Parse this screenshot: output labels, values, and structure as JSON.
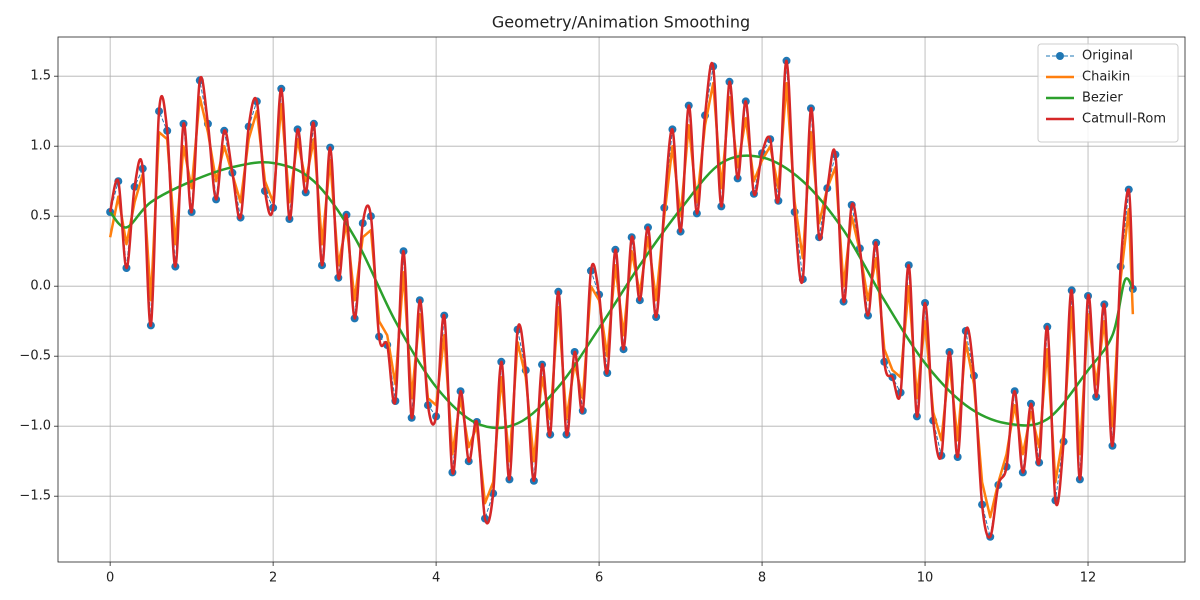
{
  "chart_data": {
    "type": "line",
    "title": "Geometry/Animation Smoothing",
    "x": [
      0,
      0.1,
      0.2,
      0.3,
      0.4,
      0.5,
      0.6,
      0.7,
      0.8,
      0.9,
      1.0,
      1.1,
      1.2,
      1.3,
      1.4,
      1.5,
      1.6,
      1.7,
      1.8,
      1.9,
      2.0,
      2.1,
      2.2,
      2.3,
      2.4,
      2.5,
      2.6,
      2.7,
      2.8,
      2.9,
      3.0,
      3.1,
      3.2,
      3.3,
      3.4,
      3.5,
      3.6,
      3.7,
      3.8,
      3.9,
      4.0,
      4.1,
      4.2,
      4.3,
      4.4,
      4.5,
      4.6,
      4.7,
      4.8,
      4.9,
      5.0,
      5.1,
      5.2,
      5.3,
      5.4,
      5.5,
      5.6,
      5.7,
      5.8,
      5.9,
      6.0,
      6.1,
      6.2,
      6.3,
      6.4,
      6.5,
      6.6,
      6.7,
      6.8,
      6.9,
      7.0,
      7.1,
      7.2,
      7.3,
      7.4,
      7.5,
      7.6,
      7.7,
      7.8,
      7.9,
      8.0,
      8.1,
      8.2,
      8.3,
      8.4,
      8.5,
      8.6,
      8.7,
      8.8,
      8.9,
      9.0,
      9.1,
      9.2,
      9.3,
      9.4,
      9.5,
      9.6,
      9.7,
      9.8,
      9.9,
      10.0,
      10.1,
      10.2,
      10.3,
      10.4,
      10.5,
      10.6,
      10.7,
      10.8,
      10.9,
      11.0,
      11.1,
      11.2,
      11.3,
      11.4,
      11.5,
      11.6,
      11.7,
      11.8,
      11.9,
      12.0,
      12.1,
      12.2,
      12.3,
      12.4,
      12.5,
      12.55
    ],
    "series": [
      {
        "name": "Original",
        "color": "#1f77b4",
        "style": "dashed-markers",
        "values": [
          0.53,
          0.75,
          0.13,
          0.71,
          0.84,
          -0.28,
          1.25,
          1.11,
          0.14,
          1.16,
          0.53,
          1.47,
          1.16,
          0.62,
          1.11,
          0.81,
          0.49,
          1.14,
          1.32,
          0.68,
          0.56,
          1.41,
          0.48,
          1.12,
          0.67,
          1.16,
          0.15,
          0.99,
          0.06,
          0.51,
          -0.23,
          0.45,
          0.5,
          -0.36,
          -0.42,
          -0.82,
          0.25,
          -0.94,
          -0.1,
          -0.85,
          -0.93,
          -0.21,
          -1.33,
          -0.75,
          -1.25,
          -0.97,
          -1.66,
          -1.48,
          -0.54,
          -1.38,
          -0.31,
          -0.6,
          -1.39,
          -0.56,
          -1.06,
          -0.04,
          -1.06,
          -0.47,
          -0.89,
          0.11,
          -0.06,
          -0.62,
          0.26,
          -0.45,
          0.35,
          -0.1,
          0.42,
          -0.22,
          0.56,
          1.12,
          0.39,
          1.29,
          0.52,
          1.22,
          1.57,
          0.57,
          1.46,
          0.77,
          1.32,
          0.66,
          0.95,
          1.05,
          0.61,
          1.61,
          0.53,
          0.05,
          1.27,
          0.35,
          0.7,
          0.94,
          -0.11,
          0.58,
          0.27,
          -0.21,
          0.31,
          -0.54,
          -0.65,
          -0.76,
          0.15,
          -0.93,
          -0.12,
          -0.96,
          -1.21,
          -0.47,
          -1.22,
          -0.32,
          -0.64,
          -1.56,
          -1.79,
          -1.42,
          -1.29,
          -0.75,
          -1.33,
          -0.84,
          -1.26,
          -0.29,
          -1.53,
          -1.11,
          -0.03,
          -1.38,
          -0.07,
          -0.79,
          -0.13,
          -1.14,
          0.14,
          0.69,
          -0.02
        ]
      },
      {
        "name": "Chaikin",
        "color": "#ff7f0e",
        "style": "polyline",
        "values": [
          0.35,
          0.64,
          0.3,
          0.6,
          0.8,
          -0.1,
          1.1,
          1.05,
          0.3,
          1.0,
          0.7,
          1.35,
          1.1,
          0.75,
          1.0,
          0.8,
          0.6,
          1.05,
          1.25,
          0.75,
          0.6,
          1.3,
          0.6,
          1.05,
          0.75,
          1.05,
          0.3,
          0.9,
          0.15,
          0.45,
          -0.1,
          0.35,
          0.4,
          -0.25,
          -0.35,
          -0.7,
          0.1,
          -0.8,
          -0.2,
          -0.8,
          -0.85,
          -0.35,
          -1.2,
          -0.8,
          -1.15,
          -1.0,
          -1.55,
          -1.4,
          -0.65,
          -1.25,
          -0.4,
          -0.65,
          -1.25,
          -0.65,
          -0.95,
          -0.15,
          -0.95,
          -0.55,
          -0.8,
          0.0,
          -0.1,
          -0.5,
          0.15,
          -0.35,
          0.25,
          -0.05,
          0.35,
          -0.1,
          0.5,
          1.0,
          0.5,
          1.15,
          0.6,
          1.15,
          1.45,
          0.7,
          1.35,
          0.85,
          1.2,
          0.75,
          0.9,
          1.0,
          0.7,
          1.45,
          0.6,
          0.2,
          1.1,
          0.45,
          0.7,
          0.85,
          0.0,
          0.5,
          0.25,
          -0.1,
          0.2,
          -0.45,
          -0.6,
          -0.65,
          0.0,
          -0.8,
          -0.25,
          -0.9,
          -1.1,
          -0.55,
          -1.1,
          -0.4,
          -0.7,
          -1.4,
          -1.65,
          -1.4,
          -1.2,
          -0.85,
          -1.2,
          -0.9,
          -1.15,
          -0.45,
          -1.4,
          -1.05,
          -0.15,
          -1.2,
          -0.2,
          -0.7,
          -0.25,
          -1.0,
          0.05,
          0.55,
          -0.2
        ]
      },
      {
        "name": "Bezier",
        "color": "#2ca02c",
        "style": "smooth",
        "x": [
          0,
          0.2,
          0.5,
          1,
          1.5,
          2,
          2.5,
          3,
          3.5,
          4,
          4.5,
          5,
          5.5,
          6,
          6.5,
          7,
          7.5,
          8,
          8.5,
          9,
          9.5,
          10,
          10.5,
          11,
          11.5,
          12,
          12.3,
          12.45,
          12.55
        ],
        "values": [
          0.53,
          0.42,
          0.6,
          0.75,
          0.85,
          0.88,
          0.75,
          0.35,
          -0.25,
          -0.72,
          -0.98,
          -0.98,
          -0.72,
          -0.3,
          0.15,
          0.55,
          0.88,
          0.92,
          0.75,
          0.4,
          -0.1,
          -0.55,
          -0.85,
          -0.98,
          -0.95,
          -0.6,
          -0.35,
          0.04,
          -0.02
        ]
      },
      {
        "name": "Catmull-Rom",
        "color": "#d62728",
        "style": "spline",
        "values": [
          0.53,
          0.75,
          0.13,
          0.71,
          0.84,
          -0.28,
          1.25,
          1.11,
          0.14,
          1.16,
          0.53,
          1.47,
          1.16,
          0.62,
          1.11,
          0.81,
          0.49,
          1.14,
          1.32,
          0.68,
          0.56,
          1.41,
          0.48,
          1.12,
          0.67,
          1.16,
          0.15,
          0.99,
          0.06,
          0.51,
          -0.23,
          0.45,
          0.5,
          -0.36,
          -0.42,
          -0.82,
          0.25,
          -0.94,
          -0.1,
          -0.85,
          -0.93,
          -0.21,
          -1.33,
          -0.75,
          -1.25,
          -0.97,
          -1.66,
          -1.48,
          -0.54,
          -1.38,
          -0.31,
          -0.6,
          -1.39,
          -0.56,
          -1.06,
          -0.04,
          -1.06,
          -0.47,
          -0.89,
          0.11,
          -0.06,
          -0.62,
          0.26,
          -0.45,
          0.35,
          -0.1,
          0.42,
          -0.22,
          0.56,
          1.12,
          0.39,
          1.29,
          0.52,
          1.22,
          1.57,
          0.57,
          1.46,
          0.77,
          1.32,
          0.66,
          0.95,
          1.05,
          0.61,
          1.61,
          0.53,
          0.05,
          1.27,
          0.35,
          0.7,
          0.94,
          -0.11,
          0.58,
          0.27,
          -0.21,
          0.31,
          -0.54,
          -0.65,
          -0.76,
          0.15,
          -0.93,
          -0.12,
          -0.96,
          -1.21,
          -0.47,
          -1.22,
          -0.32,
          -0.64,
          -1.56,
          -1.79,
          -1.42,
          -1.29,
          -0.75,
          -1.33,
          -0.84,
          -1.26,
          -0.29,
          -1.53,
          -1.11,
          -0.03,
          -1.38,
          -0.07,
          -0.79,
          -0.13,
          -1.14,
          0.14,
          0.69,
          -0.02
        ]
      }
    ],
    "xlim": [
      -0.64,
      13.19
    ],
    "xticks": [
      0,
      2,
      4,
      6,
      8,
      10,
      12
    ],
    "ylim": [
      -1.97,
      1.78
    ],
    "yticks": [
      {
        "value": -1.5,
        "label": "−1.5"
      },
      {
        "value": -1.0,
        "label": "−1.0"
      },
      {
        "value": -0.5,
        "label": "−0.5"
      },
      {
        "value": 0,
        "label": "0.0"
      },
      {
        "value": 0.5,
        "label": "0.5"
      },
      {
        "value": 1.0,
        "label": "1.0"
      },
      {
        "value": 1.5,
        "label": "1.5"
      }
    ],
    "grid": true,
    "legend": "upper right"
  }
}
